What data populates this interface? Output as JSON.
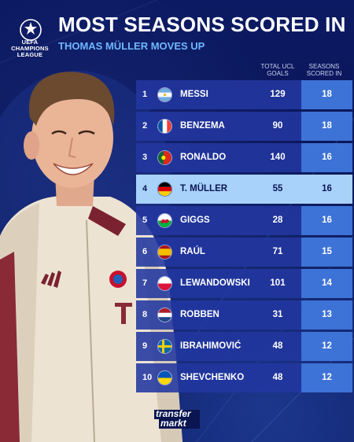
{
  "competition_logo": {
    "icon": "champions-league-starball-icon",
    "text_line1": "UEFA",
    "text_line2": "CHAMPIONS",
    "text_line3": "LEAGUE"
  },
  "header": {
    "title": "MOST SEASONS SCORED IN",
    "subtitle": "THOMAS MÜLLER MOVES UP"
  },
  "columns": {
    "goals": "TOTAL UCL GOALS",
    "seasons": "SEASONS SCORED IN"
  },
  "rows": [
    {
      "rank": "1",
      "flag": "argentina-flag-icon",
      "name": "MESSI",
      "goals": "129",
      "seasons": "18",
      "highlight": false
    },
    {
      "rank": "2",
      "flag": "france-flag-icon",
      "name": "BENZEMA",
      "goals": "90",
      "seasons": "18",
      "highlight": false
    },
    {
      "rank": "3",
      "flag": "portugal-flag-icon",
      "name": "RONALDO",
      "goals": "140",
      "seasons": "16",
      "highlight": false
    },
    {
      "rank": "4",
      "flag": "germany-flag-icon",
      "name": "T. MÜLLER",
      "goals": "55",
      "seasons": "16",
      "highlight": true
    },
    {
      "rank": "5",
      "flag": "wales-flag-icon",
      "name": "GIGGS",
      "goals": "28",
      "seasons": "16",
      "highlight": false
    },
    {
      "rank": "6",
      "flag": "spain-flag-icon",
      "name": "RAÚL",
      "goals": "71",
      "seasons": "15",
      "highlight": false
    },
    {
      "rank": "7",
      "flag": "poland-flag-icon",
      "name": "LEWANDOWSKI",
      "goals": "101",
      "seasons": "14",
      "highlight": false
    },
    {
      "rank": "8",
      "flag": "netherlands-flag-icon",
      "name": "ROBBEN",
      "goals": "31",
      "seasons": "13",
      "highlight": false
    },
    {
      "rank": "9",
      "flag": "sweden-flag-icon",
      "name": "IBRAHIMOVIĆ",
      "goals": "48",
      "seasons": "12",
      "highlight": false
    },
    {
      "rank": "10",
      "flag": "ukraine-flag-icon",
      "name": "SHEVCHENKO",
      "goals": "48",
      "seasons": "12",
      "highlight": false
    }
  ],
  "footer": {
    "brand_line1": "transfer",
    "brand_line2": "markt"
  },
  "colors": {
    "background": "#0a1552",
    "row": "#2237a0",
    "seasons_cell": "#3d72d6",
    "highlight": "#a9d2fb",
    "subtitle": "#6fb7ff"
  }
}
